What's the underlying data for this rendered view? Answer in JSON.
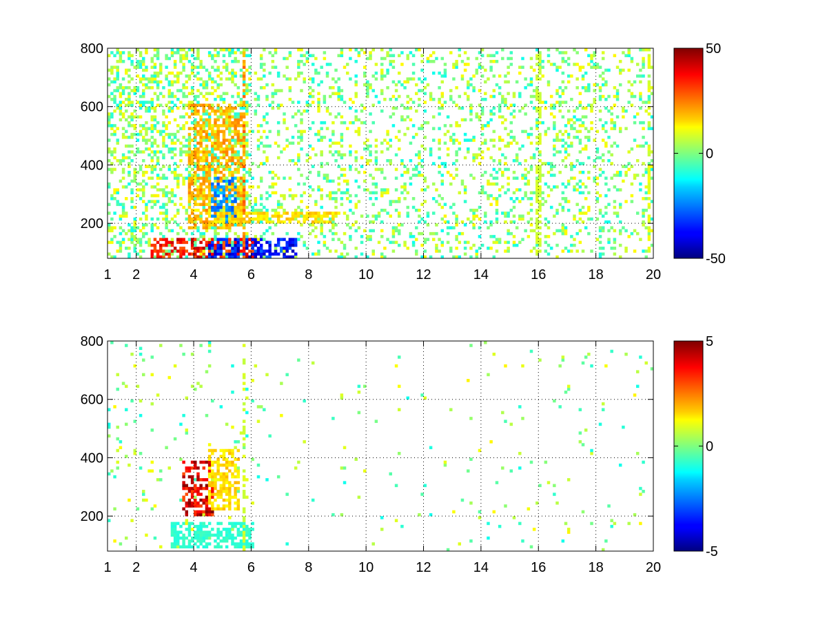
{
  "chart_data": [
    {
      "type": "heatmap",
      "title": "",
      "xlabel": "",
      "ylabel": "",
      "xlim": [
        1,
        20
      ],
      "ylim": [
        80,
        800
      ],
      "xticks": [
        1,
        2,
        4,
        6,
        8,
        10,
        12,
        14,
        16,
        18,
        20
      ],
      "xtick_labels": [
        "1",
        "2",
        "4",
        "6",
        "8",
        "10",
        "12",
        "14",
        "16",
        "18",
        "20"
      ],
      "yticks": [
        200,
        400,
        600,
        800
      ],
      "ytick_labels": [
        "200",
        "400",
        "600",
        "800"
      ],
      "grid": true,
      "colormap": "jet",
      "clim": [
        -50,
        50
      ],
      "colorbar_ticks": [
        50,
        0,
        -50
      ],
      "colorbar_tick_labels": [
        "50",
        "0",
        "-50"
      ],
      "features": [
        {
          "x": [
            2.5,
            6.0
          ],
          "y": [
            80,
            140
          ],
          "value": 45
        },
        {
          "x": [
            4.5,
            7.5
          ],
          "y": [
            80,
            140
          ],
          "value": -45
        },
        {
          "x": [
            3.8,
            5.8
          ],
          "y": [
            180,
            600
          ],
          "value": 25
        },
        {
          "x": [
            4.6,
            5.4
          ],
          "y": [
            200,
            350
          ],
          "value": -30
        },
        {
          "x": [
            5.7,
            5.8
          ],
          "y": [
            80,
            800
          ],
          "value": 30
        },
        {
          "x": [
            4.5,
            9.0
          ],
          "y": [
            200,
            230
          ],
          "value": 20
        },
        {
          "x": [
            15.9,
            16.0
          ],
          "y": [
            80,
            800
          ],
          "value": 10
        },
        {
          "x": [
            19.8,
            19.9
          ],
          "y": [
            80,
            800
          ],
          "value": 12
        }
      ]
    },
    {
      "type": "heatmap",
      "title": "",
      "xlabel": "",
      "ylabel": "",
      "xlim": [
        1,
        20
      ],
      "ylim": [
        80,
        800
      ],
      "xticks": [
        1,
        2,
        4,
        6,
        8,
        10,
        12,
        14,
        16,
        18,
        20
      ],
      "xtick_labels": [
        "1",
        "2",
        "4",
        "6",
        "8",
        "10",
        "12",
        "14",
        "16",
        "18",
        "20"
      ],
      "yticks": [
        200,
        400,
        600,
        800
      ],
      "ytick_labels": [
        "200",
        "400",
        "600",
        "800"
      ],
      "grid": true,
      "colormap": "jet",
      "clim": [
        -5,
        5
      ],
      "colorbar_ticks": [
        5,
        0,
        -5
      ],
      "colorbar_tick_labels": [
        "5",
        "0",
        "-5"
      ],
      "features": [
        {
          "x": [
            3.6,
            4.6
          ],
          "y": [
            200,
            380
          ],
          "value": 5
        },
        {
          "x": [
            3.2,
            6.0
          ],
          "y": [
            90,
            170
          ],
          "value": -1
        },
        {
          "x": [
            4.5,
            5.5
          ],
          "y": [
            220,
            420
          ],
          "value": 2
        },
        {
          "x": [
            5.7,
            5.8
          ],
          "y": [
            80,
            800
          ],
          "value": 1
        }
      ]
    }
  ]
}
